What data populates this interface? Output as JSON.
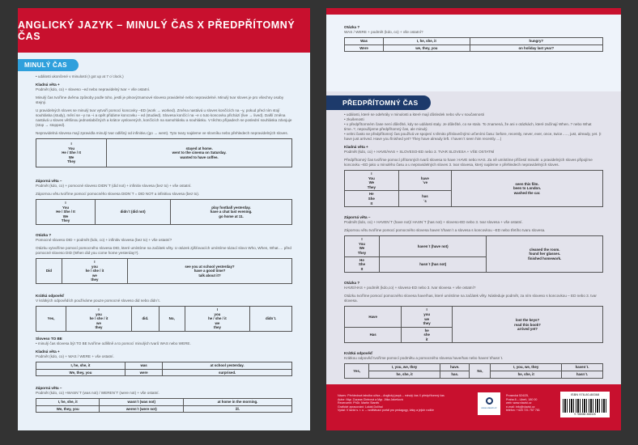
{
  "left": {
    "title": "ANGLICKÝ JAZYK – MINULÝ ČAS X PŘEDPŘÍTOMNÝ ČAS",
    "section": "MINULÝ ČAS",
    "intro": "• události ukončené v minulosti (I got up at 7 o´clock.)",
    "pos_head": "Kladná věta +",
    "pos_rule": "Podmět (kdo, co) + sloveso –ed nebo nepravidelný tvar + vše ostatní.",
    "p1": "Minulý čas tvoříme dvěma způsoby podle toho, jestli je plnovýznamové sloveso pravidelné nebo nepravidelné. Minulý tvar sloves je pro všechny osoby stejný.",
    "p2": "U pravidelných sloves se minulý tvar vytvoří pomocí koncovky –ED (work → worked). Změna nastává u sloves končících na –y, pokud před ním stojí souhláska (study), mění se –y na –i a opět přidáme koncovku – ed (studied). Slovesa končící na –e o tuto koncovku přichází (live → lived). Další změna nastává u sloves většinou jednoslabičných a krátce vyslovených, končících na samohlásku a souhlásku. V těchto případech se poslední souhláska zdvojuje (stop → stopped).",
    "p3": "Nepravidelná slovesa mají zpravidla minulý tvar odlišný od infinitivu (go → went). Tyto tvary najdeme ve slovníku nebo přehledech nepravidelných sloves.",
    "t1": [
      [
        "I\nYou\nHe / She / It\nWe\nThey",
        "stayed at home.\nwent to the cinema on Saturday.\nwanted to have coffee."
      ]
    ],
    "neg_head": "Záporná věta –",
    "neg_rule": "Podmět (kdo, co) + pomocné sloveso DIDN´T (did not) + infinitiv slovesa (bez to) + vše ostatní.",
    "neg_p": "Zápornou větu tvoříme pomocí pomocného slovesa DIDN´T = DID NOT a infinitivu slovesa (bez to).",
    "t2": [
      [
        "I\nYou\nHe / She / It\nWe\nThey",
        "didn´t (did not)",
        "play football yesterday.\nhave a chat last evening.\ngo home at 11."
      ]
    ],
    "q_head": "Otázka ?",
    "q_rule": "Pomocné sloveso DID + podmět (kdo, co) + infinitiv slovesa (bez to) + vše ostatní?",
    "q_p": "Otázku vytvoříme pomocí pomocného slovesa DID, které umístíme na začátek věty. U otázek zjišťovacích umístíme tázací slovo Who, When, What…. před pomocné sloveso DID (When did you come home yesterday?).",
    "t3": [
      [
        "Did",
        "I\nyou\nhe / she / it\nwe\nthey",
        "see you at school yesterday?\nhave a good time?\ntalk about it?"
      ]
    ],
    "s_head": "Krátká odpověď",
    "s_p": "V krátkých odpovědích používáme pouze pomocné sloveso did nebo didn´t.",
    "t4": [
      [
        "Yes,",
        "I\nyou\nhe / she / it\nwe\nthey",
        "did.",
        "No,",
        "I\nyou\nhe / she / it\nwe\nthey",
        "didn´t."
      ]
    ],
    "be_head": "Sloveso TO BE",
    "be_p": "• minulý čas slovesa být TO BE tvoříme odlišně a to pomocí minulých tvarů WAS nebo WERE.",
    "be_pos_head": "Kladná věta +",
    "be_pos_rule": "Podmět (kdo, co) + WAS / WERE + vše ostatní.",
    "t5": [
      [
        "I, he, she, it",
        "was",
        "at school yesterday."
      ],
      [
        "We, they, you",
        "were",
        "surprised."
      ]
    ],
    "be_neg_head": "Záporná věta –",
    "be_neg_rule": "Podmět (kdo, co) +WASN´T (was not) / WEREN´T (were not) + vše ostatní.",
    "t6": [
      [
        "I, he, she, it",
        "wasn´t (was not)",
        "at home in the morning."
      ],
      [
        "We, they, you",
        "weren´t (were not)",
        "ill."
      ]
    ]
  },
  "right": {
    "q_head": "Otázka ?",
    "q_rule": "WAS / WERE + podmět (kdo, co) + vše ostatní?",
    "t0": [
      [
        "Was",
        "I, he, she, it",
        "hungry?"
      ],
      [
        "Were",
        "we, they, you",
        "on holiday last year?"
      ]
    ],
    "section": "PŘEDPŘÍTOMNÝ ČAS",
    "bullets": [
      "události, které se odehrály v minulosti a které mají důsledek nebo vliv v současnosti",
      "zkušenosti",
      "v předpřítomném čase není důležité, kdy se události staly. Je důležité, co se stalo. To znamená, že ani v otázkách, které začínají When..? nebo What time..?, nepoužijeme předpřítomný čas, ale minulý.",
      "velmi často se předpřítomný čas používá ve spojení s těmito příslovečnými určeními času: before, recently, never, ever, once, twice….., just, already, yet. (I have just arrived. Have you finished yet? They have already left. I haven´t seen him recently….)"
    ],
    "pos_head": "Kladná věta +",
    "pos_rule": "Podmět (kdo, co) + HAVE/HAS + SLOVESO-ED nebo 3. TVAR SLOVESA + VŠE OSTATNÍ",
    "pos_p": "Předpřítomný čas tvoříme pomocí přítomných tvarů slovesa to have: HAVE nebo HAS. Za ně umístíme příčestí minulé: u pravidelných sloves připojíme koncovku –ED jako u minulého času a u nepravidelných sloves 3. tvar slovesa, který najdeme v přehledech nepravidelných sloves.",
    "t1": [
      [
        "I\nYou\nWe\nThey",
        "have\n´ve",
        {
          "t": "seen this film.\nbeen to London.\nwashed the car.",
          "rs": 2
        }
      ],
      [
        "He\nShe\nIt",
        "has\n´s"
      ]
    ],
    "neg_head": "Záporná věta –",
    "neg_rule": "Podmět (kdo, co) + HAVEN´T (have not)/ HASN´T (has not) + sloveso-ED nebo 3. tvar slovesa + vše ostatní.",
    "neg_p": "Zápornou větu tvoříme pomocí pomocného slovesa haven´t/hasn´t a slovesa s koncovkou –ED nebo třetího tvaru slovesa.",
    "t2": [
      [
        "I\nYou\nWe\nThey",
        "haven´t (have not)",
        {
          "t": "cleaned the room.\nfound her glasses.\nfinished homework.",
          "rs": 2
        }
      ],
      [
        "He\nShe\nIt",
        "hasn´t (has not)"
      ]
    ],
    "q2_head": "Otázka ?",
    "q2_rule": "HAVE/HAS + podmět (kdo,co) + sloveso-ED nebo 3. tvar slovesa + vše ostatní?",
    "q2_p": "Otázku tvoříme pomocí pomocného slovesa have/has, které umístíme na začátek věty. Následuje podmět, za ním sloveso s koncovkou – ED nebo 3. tvar slovesa.",
    "t3": [
      [
        "Have",
        "I\nyou\nwe\nthey",
        {
          "t": "lost the keys?\nread this book?\narrived yet?",
          "rs": 2
        }
      ],
      [
        "Has",
        "he\nshe\nit"
      ]
    ],
    "s_head": "Krátká odpověď",
    "s_p": "Krátkou odpověď tvoříme pomocí podmětu a pomocného slovesa have/has nebo haven´t/hasn´t.",
    "t4": [
      [
        {
          "t": "Yes,",
          "rs": 2
        },
        "I, you, we, they",
        "have.",
        {
          "t": "No,",
          "rs": 2
        },
        "I, you, we, they",
        "haven´t."
      ],
      [
        "he, she, it",
        "has.",
        "he, she, it",
        "hasn´t."
      ]
    ],
    "footer": {
      "lines": [
        "Název: Přehledová tabulka učiva – Anglický jazyk – minulý čas X předpřítomný čas",
        "Autor: Mgr. Zuzana Gintrová a Mgr. Jitka Jakešová",
        "Recenzent: PhDr. Martin Staněk",
        "Grafické zpracování: Lukáš Dolihal",
        "Vydal: V lavici s. r. o. – vzdělávací portál pro pedagogy, žáky a jejich rodiče"
      ],
      "logo_text": "www.vlavici.cz",
      "address": [
        "Prosecká 524/25,",
        "Praha 8 – Libeň, 180 00",
        "web: www.vlavici.cz",
        "e-mail: info@vlavici.cz",
        "telefon: +420 721 757 781"
      ],
      "isbn": "ISBN 978-80-88368",
      "barcode_digits": "9 788088 368328"
    }
  },
  "colors": {
    "red": "#c8102e",
    "blue": "#2fa0dc",
    "navy": "#1d3a6b",
    "background": "#333333"
  }
}
